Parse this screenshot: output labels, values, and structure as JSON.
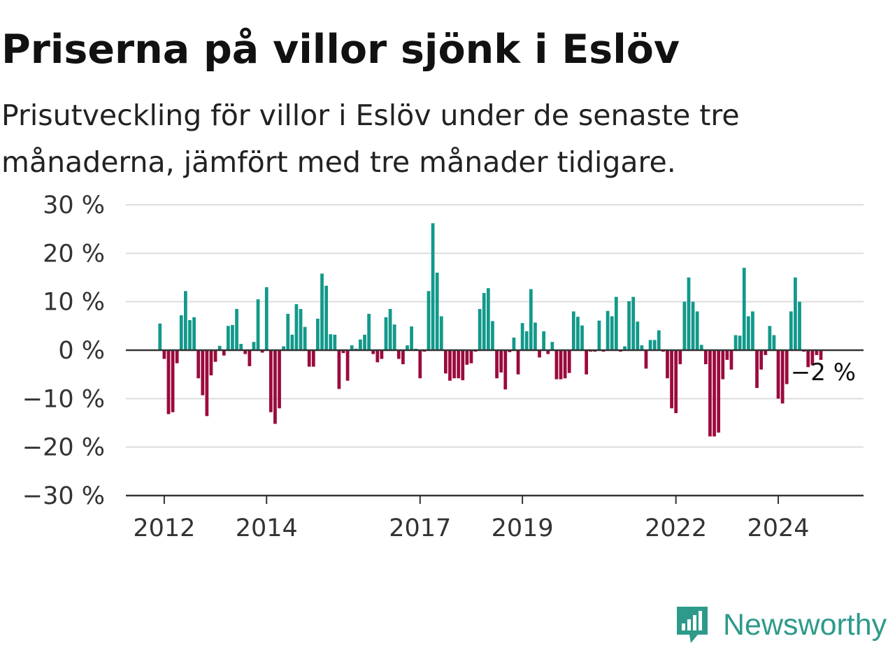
{
  "title": "Priserna på villor sjönk i Eslöv",
  "subtitle": "Prisutveckling för villor i Eslöv under de senaste tre månaderna, jämfört med tre månader tidigare.",
  "brand": {
    "name": "Newsworthy",
    "icon": "newsworthy-logo-icon"
  },
  "colors": {
    "positive": "#12998b",
    "negative": "#9b0a3e",
    "grid": "#dddddd",
    "axis": "#333333",
    "text": "#333333"
  },
  "chart_data": {
    "type": "bar",
    "ylim": [
      -30,
      30
    ],
    "yticks": [
      30,
      20,
      10,
      0,
      -10,
      -20,
      -30
    ],
    "ytick_labels": [
      "30 %",
      "20 %",
      "10 %",
      "0 %",
      "−10 %",
      "−20 %",
      "−30 %"
    ],
    "xlim": [
      "2011-04",
      "2025-09"
    ],
    "xticks": [
      "2012-01",
      "2014-01",
      "2017-01",
      "2019-01",
      "2022-01",
      "2024-01"
    ],
    "xtick_labels": [
      "2012",
      "2014",
      "2017",
      "2019",
      "2022",
      "2024"
    ],
    "grid": true,
    "last_value_label": "−2 %",
    "series": [
      {
        "start": "2011-12",
        "values": [
          5.5,
          -1.8,
          -13.2,
          -12.8,
          -2.7,
          7.2,
          12.2,
          6.2,
          6.8,
          -5.8,
          -9.3,
          -13.6,
          -5.2,
          -2.4,
          0.9,
          -1.1,
          5.0,
          5.2,
          8.5,
          1.3,
          -0.8,
          -3.3,
          1.7,
          10.5,
          -0.5,
          13.0,
          -12.8,
          -15.2,
          -12.0,
          0.8,
          7.5,
          3.2,
          9.5,
          8.5,
          4.8,
          -3.4,
          -3.4,
          6.5,
          15.8,
          13.3,
          3.3,
          3.2,
          -8.0,
          -0.6,
          -6.3,
          1.0,
          0.3,
          2.2,
          3.2,
          7.5,
          -0.8,
          -2.5,
          -1.8,
          6.8,
          8.5,
          5.3,
          -1.8,
          -2.9,
          1.0,
          4.9,
          0.3,
          -5.8,
          -0.3,
          12.2,
          26.2,
          16.0,
          7.0,
          -4.8,
          -6.3,
          -5.8,
          -5.8,
          -6.2,
          -3.0,
          -2.7,
          -0.3,
          8.5,
          11.8,
          12.8,
          6.0,
          -5.8,
          -4.6,
          -8.1,
          -0.4,
          2.6,
          -5.0,
          5.6,
          3.9,
          12.6,
          5.7,
          -1.5,
          3.9,
          -0.8,
          1.7,
          -6.0,
          -6.0,
          -5.8,
          -4.7,
          8.0,
          6.9,
          5.1,
          -5.0,
          -0.3,
          -0.3,
          6.1,
          -0.3,
          8.1,
          7.0,
          11.0,
          -0.3,
          0.8,
          10.1,
          11.0,
          5.9,
          1.0,
          -3.8,
          2.1,
          2.1,
          4.1,
          -0.3,
          -5.8,
          -12.0,
          -13.0,
          -2.9,
          10.0,
          15.0,
          10.0,
          8.0,
          1.1,
          -2.9,
          -17.8,
          -17.8,
          -17.0,
          -6.0,
          -2.0,
          -4.0,
          3.1,
          3.0,
          17.0,
          7.0,
          8.0,
          -7.8,
          -4.0,
          -1.0,
          5.0,
          3.1,
          -10.0,
          -11.0,
          -7.0,
          8.0,
          15.0,
          10.0,
          -0.3,
          -3.5,
          -3.1,
          -1.0,
          -2.0
        ]
      }
    ]
  }
}
